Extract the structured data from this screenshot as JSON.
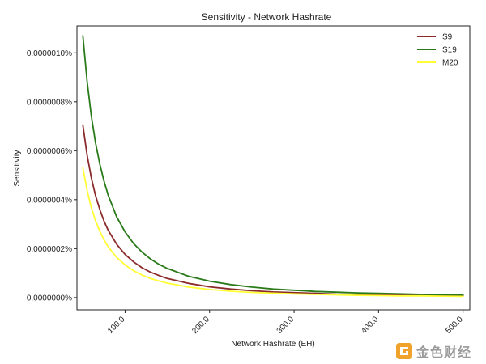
{
  "chart_data": {
    "type": "line",
    "title": "Sensitivity - Network Hashrate",
    "xlabel": "Network Hashrate (EH)",
    "ylabel": "Sensitivity",
    "xlim": [
      43,
      508
    ],
    "ylim": [
      -5e-08,
      1.11e-06
    ],
    "xticks": [
      100,
      200,
      300,
      400,
      500
    ],
    "xtick_labels": [
      "100.0",
      "200.0",
      "300.0",
      "400.0",
      "500.0"
    ],
    "yticks": [
      0,
      2e-07,
      4e-07,
      6e-07,
      8e-07,
      1e-06
    ],
    "ytick_labels": [
      "0.0000000%",
      "0.0000002%",
      "0.0000004%",
      "0.0000006%",
      "0.0000008%",
      "0.0000010%"
    ],
    "grid": false,
    "legend_position": "top-right",
    "x": [
      50,
      55,
      60,
      65,
      70,
      75,
      80,
      90,
      100,
      110,
      120,
      130,
      140,
      150,
      175,
      200,
      225,
      250,
      275,
      300,
      325,
      350,
      375,
      400,
      425,
      450,
      475,
      500
    ],
    "series": [
      {
        "name": "S9",
        "color": "#8b2a2a",
        "values": [
          7.05e-07,
          5.83e-07,
          4.9e-07,
          4.17e-07,
          3.6e-07,
          3.13e-07,
          2.75e-07,
          2.18e-07,
          1.76e-07,
          1.46e-07,
          1.22e-07,
          1.04e-07,
          9e-08,
          7.8e-08,
          5.8e-08,
          4.4e-08,
          3.5e-08,
          2.8e-08,
          2.3e-08,
          2e-08,
          1.7e-08,
          1.4e-08,
          1.3e-08,
          1.1e-08,
          1e-08,
          9e-09,
          8e-09,
          7e-09
        ]
      },
      {
        "name": "S19",
        "color": "#2a7a1a",
        "values": [
          1.07e-06,
          8.85e-07,
          7.43e-07,
          6.33e-07,
          5.46e-07,
          4.76e-07,
          4.18e-07,
          3.3e-07,
          2.68e-07,
          2.21e-07,
          1.86e-07,
          1.58e-07,
          1.36e-07,
          1.19e-07,
          8.7e-08,
          6.7e-08,
          5.3e-08,
          4.3e-08,
          3.5e-08,
          3e-08,
          2.5e-08,
          2.2e-08,
          1.9e-08,
          1.7e-08,
          1.5e-08,
          1.3e-08,
          1.2e-08,
          1.1e-08
        ]
      },
      {
        "name": "M20",
        "color": "#ffff33",
        "values": [
          5.3e-07,
          4.38e-07,
          3.68e-07,
          3.14e-07,
          2.71e-07,
          2.36e-07,
          2.07e-07,
          1.64e-07,
          1.33e-07,
          1.1e-07,
          9.2e-08,
          7.8e-08,
          6.8e-08,
          5.9e-08,
          4.3e-08,
          3.3e-08,
          2.6e-08,
          2.1e-08,
          1.8e-08,
          1.5e-08,
          1.3e-08,
          1.1e-08,
          9e-09,
          8e-09,
          7e-09,
          7e-09,
          6e-09,
          5e-09
        ]
      }
    ]
  },
  "watermark": {
    "text": "金色财经",
    "icon": "gold-logo-icon"
  }
}
